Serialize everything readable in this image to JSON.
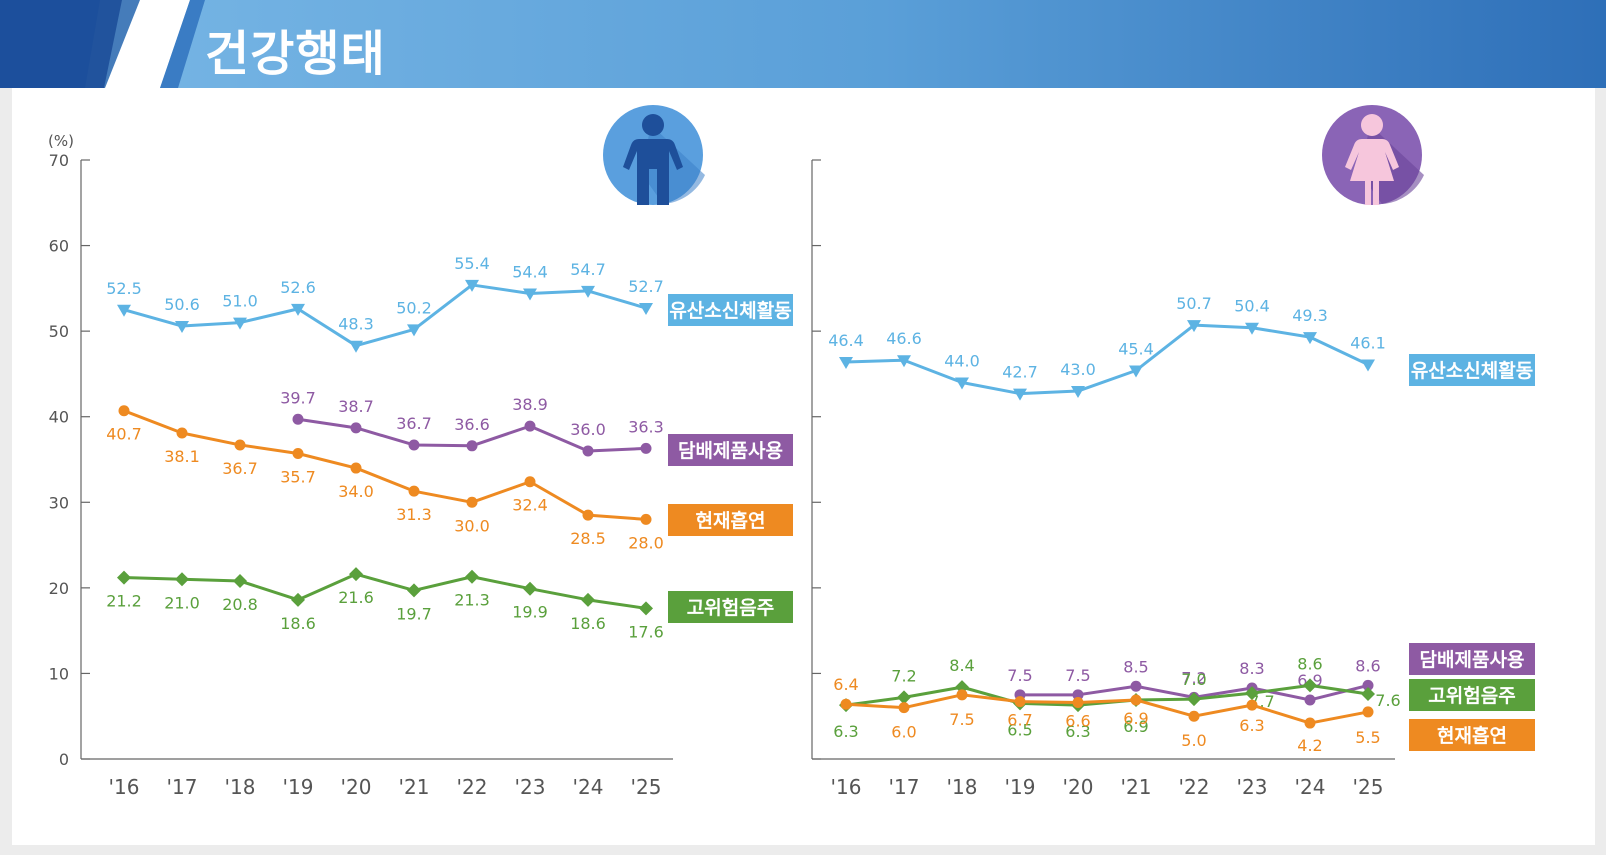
{
  "header": {
    "title": "건강행태"
  },
  "colors": {
    "physical_activity": "#5db3e3",
    "tobacco": "#8e5aa3",
    "smoking": "#ee8a21",
    "drinking": "#5aa03c",
    "axis": "#666666",
    "header_dark": "#1c4f9c",
    "header_light": "#6aaee0"
  },
  "icons": {
    "male": "male-person-icon",
    "female": "female-person-icon"
  },
  "chart_data": [
    {
      "type": "line",
      "title": "",
      "unit_label": "(%)",
      "ylim": [
        0,
        70
      ],
      "yticks": [
        0,
        10,
        20,
        30,
        40,
        50,
        60,
        70
      ],
      "categories": [
        "'16",
        "'17",
        "'18",
        "'19",
        "'20",
        "'21",
        "'22",
        "'23",
        "'24",
        "'25"
      ],
      "series": [
        {
          "key": "physical_activity",
          "name": "유산소신체활동",
          "marker": "triangle-down",
          "label_pos": "above",
          "values": [
            52.5,
            50.6,
            51.0,
            52.6,
            48.3,
            50.2,
            55.4,
            54.4,
            54.7,
            52.7
          ]
        },
        {
          "key": "tobacco",
          "name": "담배제품사용",
          "marker": "circle",
          "label_pos": "above",
          "values": [
            null,
            null,
            null,
            39.7,
            38.7,
            36.7,
            36.6,
            38.9,
            36.0,
            36.3
          ]
        },
        {
          "key": "smoking",
          "name": "현재흡연",
          "marker": "circle",
          "label_pos": "below",
          "values": [
            40.7,
            38.1,
            36.7,
            35.7,
            34.0,
            31.3,
            30.0,
            32.4,
            28.5,
            28.0
          ]
        },
        {
          "key": "drinking",
          "name": "고위험음주",
          "marker": "diamond",
          "label_pos": "below",
          "values": [
            21.2,
            21.0,
            20.8,
            18.6,
            21.6,
            19.7,
            21.3,
            19.9,
            18.6,
            17.6
          ]
        }
      ]
    },
    {
      "type": "line",
      "title": "",
      "ylim": [
        0,
        70
      ],
      "categories": [
        "'16",
        "'17",
        "'18",
        "'19",
        "'20",
        "'21",
        "'22",
        "'23",
        "'24",
        "'25"
      ],
      "series": [
        {
          "key": "physical_activity",
          "name": "유산소신체활동",
          "marker": "triangle-down",
          "label_pos": "above",
          "values": [
            46.4,
            46.6,
            44.0,
            42.7,
            43.0,
            45.4,
            50.7,
            50.4,
            49.3,
            46.1
          ]
        },
        {
          "key": "tobacco",
          "name": "담배제품사용",
          "marker": "circle",
          "label_pos": "above",
          "values": [
            null,
            null,
            null,
            7.5,
            7.5,
            8.5,
            7.2,
            8.3,
            6.9,
            8.6
          ]
        },
        {
          "key": "drinking",
          "name": "고위험음주",
          "marker": "diamond",
          "label_pos": "mixed",
          "values": [
            6.3,
            7.2,
            8.4,
            6.5,
            6.3,
            6.9,
            7.0,
            7.7,
            8.6,
            7.6
          ]
        },
        {
          "key": "smoking",
          "name": "현재흡연",
          "marker": "circle",
          "label_pos": "mixed",
          "values": [
            6.4,
            6.0,
            7.5,
            6.7,
            6.6,
            6.9,
            5.0,
            6.3,
            4.2,
            5.5
          ]
        }
      ]
    }
  ]
}
